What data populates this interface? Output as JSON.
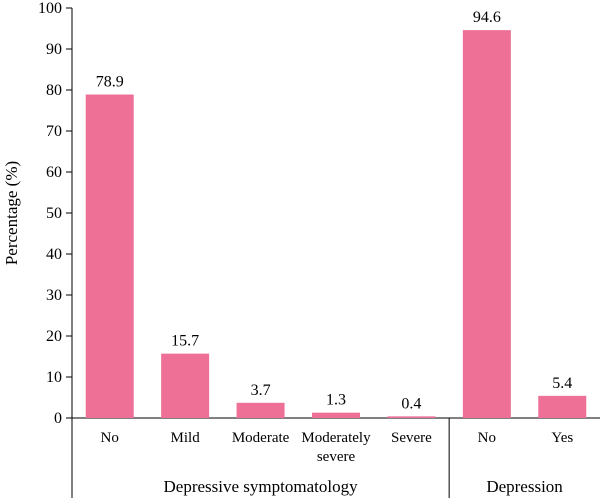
{
  "chart_data": {
    "type": "bar",
    "ylabel": "Percentage (%)",
    "ylim": [
      0,
      100
    ],
    "yticks": [
      0,
      10,
      20,
      30,
      40,
      50,
      60,
      70,
      80,
      90,
      100
    ],
    "grid": false,
    "bar_color": "#ee7096",
    "categories": [
      [
        "No"
      ],
      [
        "Mild"
      ],
      [
        "Moderate"
      ],
      [
        "Moderately",
        "severe"
      ],
      [
        "Severe"
      ],
      [
        "No"
      ],
      [
        "Yes"
      ]
    ],
    "values": [
      78.9,
      15.7,
      3.7,
      1.3,
      0.4,
      94.6,
      5.4
    ],
    "value_labels": [
      "78.9",
      "15.7",
      "3.7",
      "1.3",
      "0.4",
      "94.6",
      "5.4"
    ],
    "groups": [
      {
        "label": "Depressive symptomatology",
        "count": 5
      },
      {
        "label": "Depression",
        "count": 2
      }
    ]
  }
}
